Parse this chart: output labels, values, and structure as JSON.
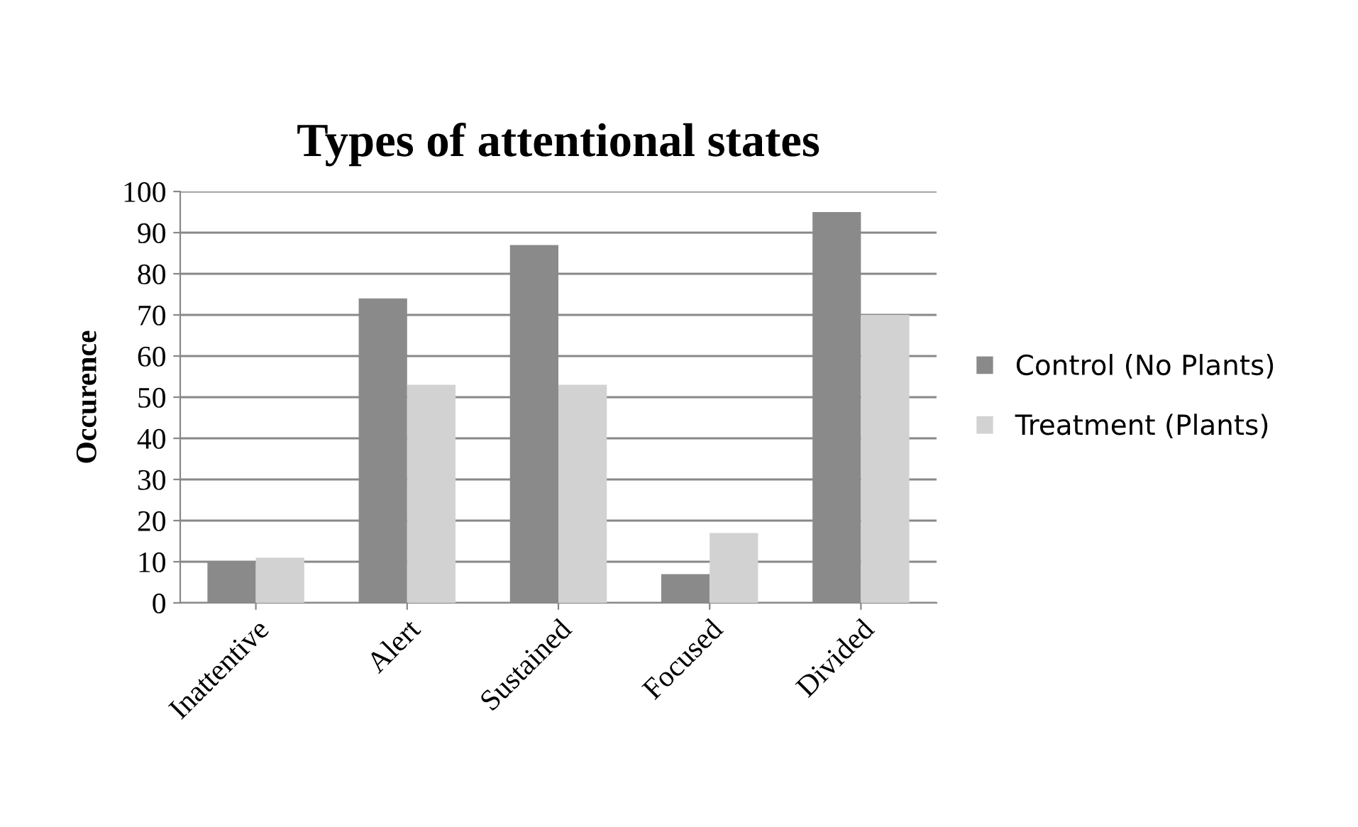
{
  "chart_data": {
    "type": "bar",
    "title": "Types of attentional states",
    "ylabel": "Occurence",
    "categories": [
      "Inattentive",
      "Alert",
      "Sustained",
      "Focused",
      "Divided"
    ],
    "series": [
      {
        "name": "Control (No Plants)",
        "color": "#8a8a8a",
        "values": [
          10,
          74,
          87,
          7,
          95
        ]
      },
      {
        "name": "Treatment (Plants)",
        "color": "#d2d2d2",
        "values": [
          11,
          53,
          53,
          17,
          70
        ]
      }
    ],
    "ylim": [
      0,
      100
    ],
    "yticks": [
      0,
      10,
      20,
      30,
      40,
      50,
      60,
      70,
      80,
      90,
      100
    ],
    "grid": "y",
    "legend": "right"
  }
}
